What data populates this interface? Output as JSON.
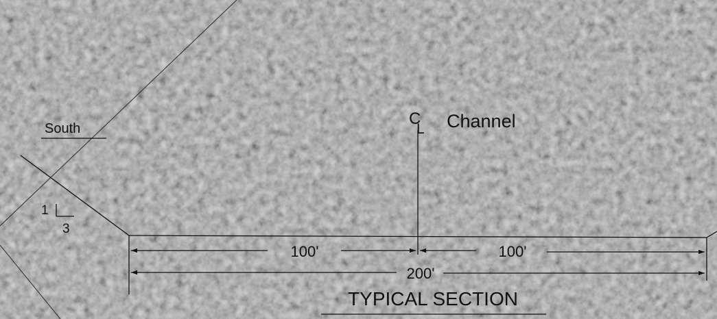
{
  "drawing": {
    "side_label": "South",
    "slope": {
      "rise": "1",
      "run": "3"
    },
    "centerline_symbol": {
      "c": "C",
      "l": "L"
    },
    "centerline_label": "Channel",
    "dimensions": {
      "left": "100'",
      "right": "100'",
      "total": "200'"
    },
    "title": "TYPICAL SECTION"
  },
  "colors": {
    "background": "#8e8e8e",
    "foliage_light": "#b4b4b4",
    "foliage_dark": "#6a6a6a",
    "linework": "#111111"
  }
}
